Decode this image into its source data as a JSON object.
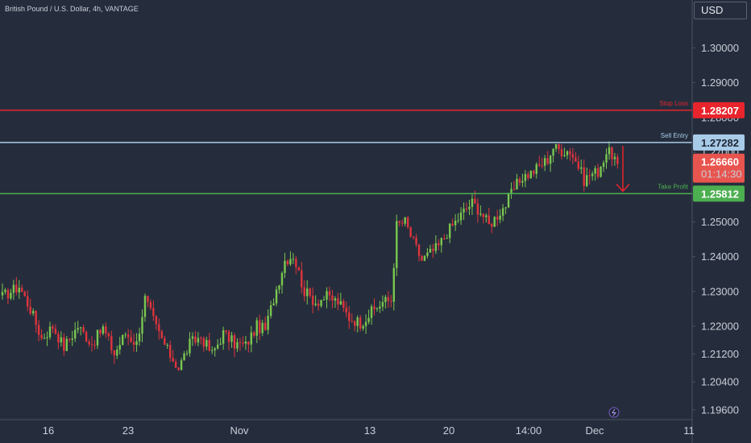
{
  "header": {
    "symbol_title": "British Pound / U.S. Dollar, 4h, VANTAGE",
    "currency_button": "USD"
  },
  "colors": {
    "background": "#252d3c",
    "grid": "#2f3848",
    "up_candle": "#7ac74f",
    "down_candle": "#e0343c",
    "stop_loss": "#e8242c",
    "sell_entry": "#a8cbe8",
    "take_profit": "#4caf50",
    "current_price": "#e8544e"
  },
  "chart_data": {
    "type": "candlestick",
    "title": "British Pound / U.S. Dollar, 4h, VANTAGE",
    "y_axis": {
      "ylim": [
        1.1934,
        1.3126
      ],
      "ticks": [
        "1.30000",
        "1.29000",
        "1.28000",
        "1.27000",
        "1.25000",
        "1.24000",
        "1.23000",
        "1.22000",
        "1.21200",
        "1.20400",
        "1.19600"
      ],
      "tick_values": [
        1.3,
        1.29,
        1.28,
        1.27,
        1.25,
        1.24,
        1.23,
        1.22,
        1.212,
        1.204,
        1.196
      ],
      "side": "right",
      "currency": "USD"
    },
    "x_axis": {
      "labels": [
        "16",
        "23",
        "Nov",
        "13",
        "20",
        "14:00",
        "Dec",
        "11"
      ]
    },
    "grid": false,
    "levels": [
      {
        "name": "Stop Loss",
        "price": 1.28207,
        "tag": "1.28207",
        "color": "#e8242c"
      },
      {
        "name": "Sell Entry",
        "price": 1.27282,
        "tag": "1.27282",
        "color": "#a8cbe8"
      },
      {
        "name": "Take Profit",
        "price": 1.25812,
        "tag": "1.25812",
        "color": "#4caf50"
      }
    ],
    "current_price": {
      "value": 1.2666,
      "label": "1.26660",
      "countdown": "01:14:30"
    },
    "arrow": {
      "from_price": 1.2718,
      "to_price": 1.2588,
      "direction": "down"
    },
    "waypoints": [
      [
        0,
        1.2285
      ],
      [
        6,
        1.2315
      ],
      [
        10,
        1.225
      ],
      [
        14,
        1.2165
      ],
      [
        18,
        1.22
      ],
      [
        22,
        1.214
      ],
      [
        27,
        1.22
      ],
      [
        32,
        1.215
      ],
      [
        36,
        1.2195
      ],
      [
        40,
        1.212
      ],
      [
        44,
        1.218
      ],
      [
        48,
        1.215
      ],
      [
        51,
        1.228
      ],
      [
        55,
        1.2195
      ],
      [
        59,
        1.213
      ],
      [
        63,
        1.208
      ],
      [
        67,
        1.215
      ],
      [
        71,
        1.217
      ],
      [
        75,
        1.212
      ],
      [
        79,
        1.218
      ],
      [
        83,
        1.215
      ],
      [
        87,
        1.2145
      ],
      [
        91,
        1.22
      ],
      [
        94,
        1.219
      ],
      [
        97,
        1.228
      ],
      [
        101,
        1.239
      ],
      [
        104,
        1.2405
      ],
      [
        108,
        1.23
      ],
      [
        112,
        1.227
      ],
      [
        116,
        1.2285
      ],
      [
        120,
        1.227
      ],
      [
        124,
        1.2225
      ],
      [
        128,
        1.221
      ],
      [
        132,
        1.224
      ],
      [
        136,
        1.227
      ],
      [
        139,
        1.2275
      ],
      [
        141,
        1.249
      ],
      [
        144,
        1.25
      ],
      [
        147,
        1.244
      ],
      [
        150,
        1.239
      ],
      [
        153,
        1.241
      ],
      [
        156,
        1.243
      ],
      [
        159,
        1.247
      ],
      [
        162,
        1.25
      ],
      [
        165,
        1.253
      ],
      [
        168,
        1.2555
      ],
      [
        171,
        1.253
      ],
      [
        174,
        1.249
      ],
      [
        177,
        1.252
      ],
      [
        180,
        1.255
      ],
      [
        183,
        1.2595
      ],
      [
        186,
        1.263
      ],
      [
        189,
        1.264
      ],
      [
        192,
        1.266
      ],
      [
        195,
        1.268
      ],
      [
        197,
        1.2715
      ],
      [
        200,
        1.2705
      ],
      [
        203,
        1.2705
      ],
      [
        206,
        1.266
      ],
      [
        208,
        1.262
      ],
      [
        210,
        1.2635
      ],
      [
        213,
        1.2645
      ],
      [
        216,
        1.27
      ],
      [
        218,
        1.2695
      ],
      [
        220,
        1.2666
      ]
    ]
  }
}
